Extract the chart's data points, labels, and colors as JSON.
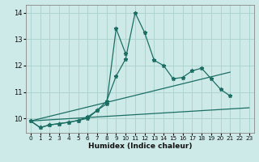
{
  "xlabel": "Humidex (Indice chaleur)",
  "xlim": [
    -0.5,
    23.5
  ],
  "ylim": [
    9.45,
    14.3
  ],
  "yticks": [
    10,
    11,
    12,
    13,
    14
  ],
  "xticks": [
    0,
    1,
    2,
    3,
    4,
    5,
    6,
    7,
    8,
    9,
    10,
    11,
    12,
    13,
    14,
    15,
    16,
    17,
    18,
    19,
    20,
    21,
    22,
    23
  ],
  "bg_color": "#cdeae8",
  "line_color": "#1c6e64",
  "grid_color": "#aed4d0",
  "lines": [
    {
      "x": [
        0,
        1,
        2,
        3,
        4,
        5,
        6,
        7,
        8,
        9,
        10,
        11,
        12,
        13,
        14,
        15,
        16,
        17,
        18,
        19,
        20,
        21
      ],
      "y": [
        9.9,
        9.65,
        9.75,
        9.8,
        9.85,
        9.92,
        10.05,
        10.3,
        10.65,
        11.6,
        12.25,
        14.0,
        13.25,
        12.2,
        12.0,
        11.5,
        11.55,
        11.8,
        11.9,
        11.5,
        11.1,
        10.85
      ],
      "marker": true
    },
    {
      "x": [
        0,
        1,
        2,
        3,
        4,
        5,
        6,
        7,
        8,
        9,
        10
      ],
      "y": [
        9.9,
        9.65,
        9.75,
        9.8,
        9.85,
        9.92,
        10.0,
        10.3,
        10.55,
        13.4,
        12.45
      ],
      "marker": true
    },
    {
      "x": [
        0,
        23
      ],
      "y": [
        9.9,
        10.4
      ],
      "marker": false
    },
    {
      "x": [
        0,
        21
      ],
      "y": [
        9.9,
        11.75
      ],
      "marker": false
    }
  ]
}
